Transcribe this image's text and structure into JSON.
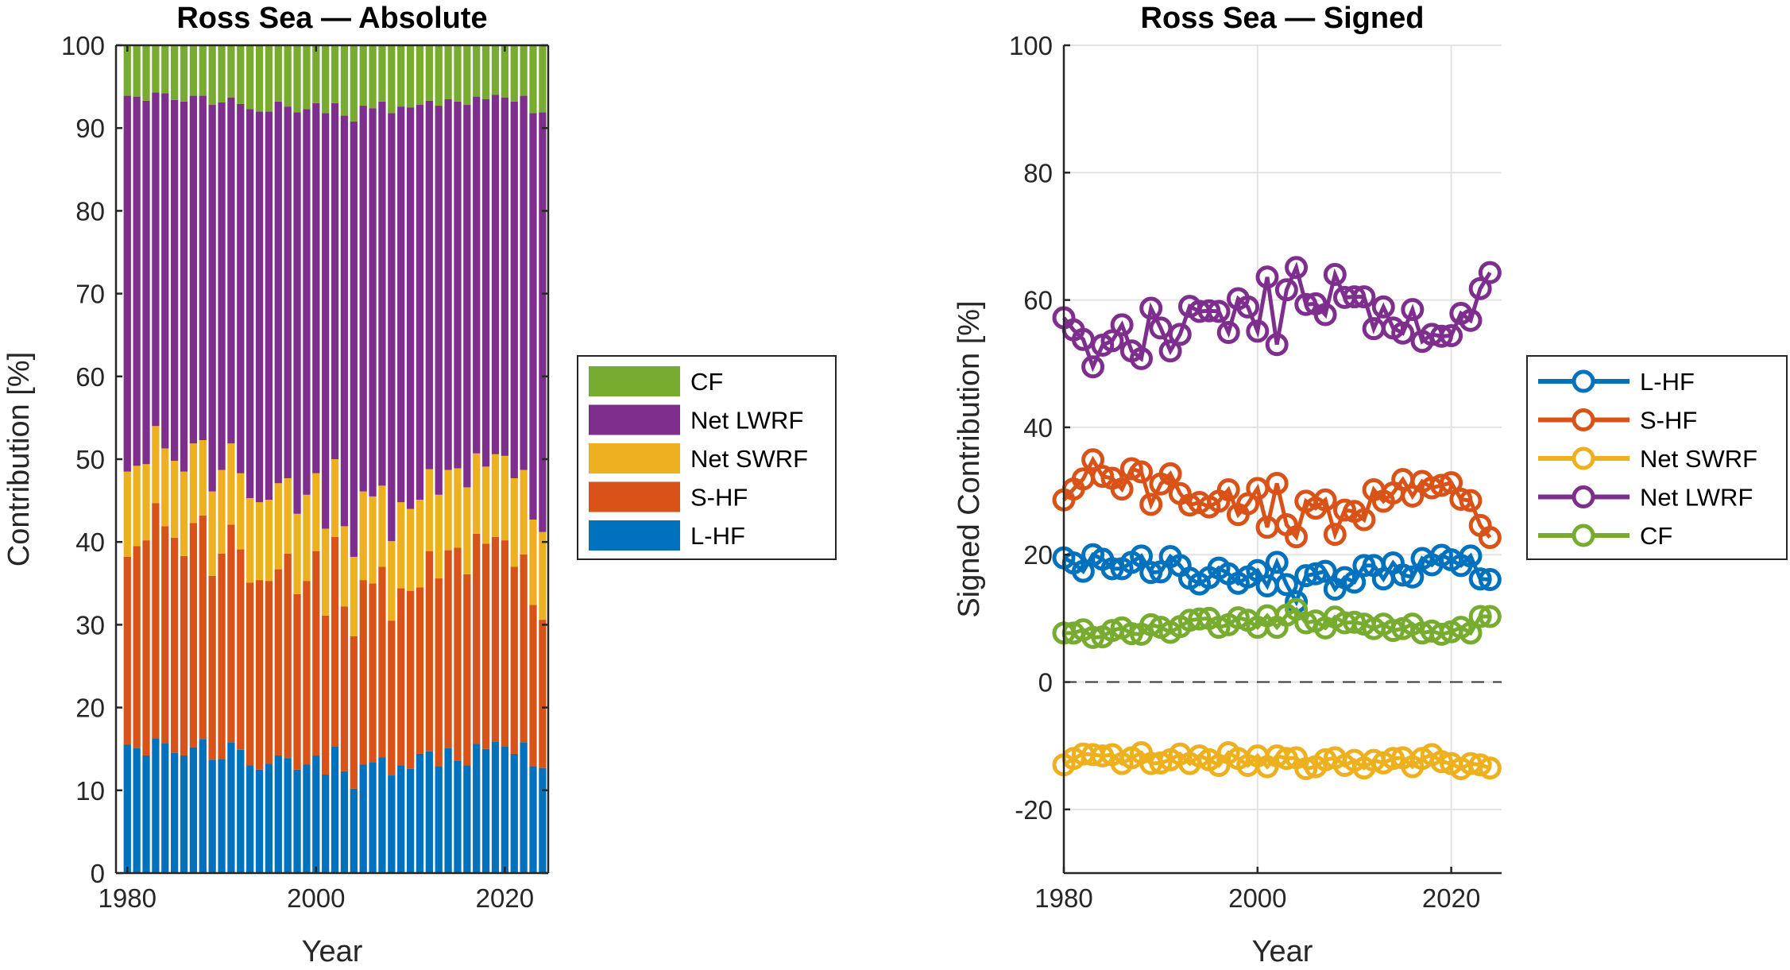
{
  "colors": {
    "L-HF": "#0072BD",
    "S-HF": "#D95319",
    "Net SWRF": "#EDB120",
    "Net LWRF": "#7E2F8E",
    "CF": "#77AC30"
  },
  "chart_data": [
    {
      "type": "bar",
      "stacked": true,
      "title": "Ross Sea — Absolute",
      "xlabel": "Year",
      "ylabel": "Contribution [%]",
      "xlim": [
        1978.8,
        2024.6
      ],
      "ylim": [
        0,
        100
      ],
      "xticks": [
        1980,
        2000,
        2020
      ],
      "yticks": [
        0,
        10,
        20,
        30,
        40,
        50,
        60,
        70,
        80,
        90,
        100
      ],
      "grid": false,
      "legend_placement": "outside-right",
      "legend_order": [
        "CF",
        "Net LWRF",
        "Net SWRF",
        "S-HF",
        "L-HF"
      ],
      "x": [
        1980,
        1981,
        1982,
        1983,
        1984,
        1985,
        1986,
        1987,
        1988,
        1989,
        1990,
        1991,
        1992,
        1993,
        1994,
        1995,
        1996,
        1997,
        1998,
        1999,
        2000,
        2001,
        2002,
        2003,
        2004,
        2005,
        2006,
        2007,
        2008,
        2009,
        2010,
        2011,
        2012,
        2013,
        2014,
        2015,
        2016,
        2017,
        2018,
        2019,
        2020,
        2021,
        2022,
        2023,
        2024
      ],
      "series": [
        {
          "name": "L-HF",
          "values": [
            15.5,
            15.1,
            14.2,
            16.3,
            15.7,
            14.5,
            14.2,
            15.2,
            16.2,
            13.7,
            13.8,
            15.8,
            14.9,
            13.0,
            12.5,
            13.2,
            14.2,
            13.9,
            12.5,
            13.1,
            14.2,
            11.9,
            15.3,
            12.3,
            10.2,
            13.1,
            13.4,
            14.0,
            11.8,
            13.0,
            12.6,
            14.4,
            14.7,
            12.9,
            15.1,
            13.6,
            13.0,
            15.6,
            15.0,
            15.9,
            15.3,
            14.4,
            15.8,
            12.9,
            12.7
          ]
        },
        {
          "name": "S-HF",
          "values": [
            22.7,
            24.4,
            26.0,
            28.4,
            26.2,
            26.0,
            24.1,
            27.1,
            27.0,
            22.2,
            24.8,
            26.3,
            24.2,
            22.1,
            22.9,
            22.1,
            22.5,
            24.7,
            21.2,
            22.2,
            24.7,
            19.2,
            25.3,
            19.9,
            18.4,
            22.3,
            21.6,
            23.0,
            18.7,
            21.4,
            21.5,
            20.1,
            24.2,
            22.7,
            23.9,
            25.7,
            23.1,
            25.4,
            24.8,
            24.7,
            24.9,
            22.6,
            22.7,
            19.5,
            17.9
          ]
        },
        {
          "name": "Net SWRF",
          "values": [
            10.3,
            9.7,
            9.2,
            9.3,
            9.4,
            9.3,
            10.2,
            9.6,
            9.1,
            10.2,
            10.1,
            9.8,
            9.2,
            10.2,
            9.4,
            9.8,
            10.4,
            9.1,
            9.7,
            10.4,
            9.4,
            10.5,
            9.4,
            9.7,
            9.6,
            10.7,
            10.5,
            9.8,
            9.6,
            10.4,
            9.9,
            10.6,
            9.9,
            10.1,
            9.7,
            9.6,
            10.5,
            9.7,
            9.3,
            10.0,
            10.2,
            10.7,
            10.2,
            10.3,
            10.6
          ]
        },
        {
          "name": "Net LWRF",
          "values": [
            45.4,
            44.6,
            43.9,
            40.3,
            42.9,
            43.6,
            44.7,
            42.0,
            41.6,
            46.7,
            44.4,
            41.8,
            44.6,
            47.0,
            47.2,
            46.9,
            46.1,
            44.9,
            48.5,
            46.6,
            44.7,
            50.2,
            43.0,
            49.6,
            52.6,
            46.6,
            46.9,
            46.4,
            51.7,
            47.8,
            48.5,
            47.7,
            44.5,
            47.0,
            44.8,
            44.3,
            46.2,
            43.1,
            44.4,
            43.4,
            43.3,
            45.5,
            45.2,
            49.1,
            50.7
          ]
        },
        {
          "name": "CF",
          "values": [
            6.1,
            6.2,
            6.7,
            5.7,
            5.8,
            6.6,
            6.8,
            6.1,
            6.1,
            7.2,
            6.9,
            6.3,
            7.1,
            7.7,
            8.0,
            8.0,
            6.8,
            7.4,
            8.1,
            7.7,
            7.0,
            8.2,
            7.0,
            8.5,
            9.2,
            7.3,
            7.6,
            6.8,
            8.2,
            7.4,
            7.5,
            7.2,
            6.7,
            7.3,
            6.5,
            6.8,
            7.2,
            6.2,
            6.5,
            6.0,
            6.3,
            6.8,
            6.1,
            8.2,
            8.1
          ]
        }
      ]
    },
    {
      "type": "line",
      "title": "Ross Sea — Signed",
      "xlabel": "Year",
      "ylabel": "Signed Contribution [%]",
      "xlim": [
        1980,
        2025.2
      ],
      "ylim": [
        -30,
        100
      ],
      "xticks": [
        1980,
        2000,
        2020
      ],
      "yticks": [
        -20,
        0,
        20,
        40,
        60,
        80,
        100
      ],
      "ytick_labels": [
        "-20",
        "0",
        "20",
        "40",
        "60",
        "80",
        "100"
      ],
      "grid": true,
      "reference_line": 0,
      "legend_placement": "outside-right",
      "x": [
        1980,
        1981,
        1982,
        1983,
        1984,
        1985,
        1986,
        1987,
        1988,
        1989,
        1990,
        1991,
        1992,
        1993,
        1994,
        1995,
        1996,
        1997,
        1998,
        1999,
        2000,
        2001,
        2002,
        2003,
        2004,
        2005,
        2006,
        2007,
        2008,
        2009,
        2010,
        2011,
        2012,
        2013,
        2014,
        2015,
        2016,
        2017,
        2018,
        2019,
        2020,
        2021,
        2022,
        2023,
        2024
      ],
      "series": [
        {
          "name": "L-HF",
          "values": [
            19.5,
            18.7,
            17.4,
            20.0,
            19.3,
            17.8,
            17.8,
            18.8,
            19.8,
            17.2,
            17.3,
            19.7,
            18.3,
            16.3,
            15.4,
            16.4,
            17.9,
            17.0,
            15.5,
            16.5,
            17.5,
            15.1,
            18.8,
            15.3,
            12.6,
            16.7,
            17.0,
            17.4,
            14.6,
            16.4,
            15.7,
            18.3,
            18.3,
            16.2,
            18.7,
            16.8,
            16.5,
            19.4,
            18.4,
            19.9,
            19.2,
            18.3,
            19.8,
            16.2,
            16.1
          ]
        },
        {
          "name": "S-HF",
          "values": [
            28.6,
            30.3,
            31.9,
            34.9,
            32.3,
            32.0,
            30.3,
            33.5,
            33.0,
            27.9,
            31.1,
            32.7,
            29.6,
            27.8,
            28.2,
            27.5,
            28.4,
            30.2,
            26.3,
            28.0,
            30.4,
            24.3,
            31.2,
            24.7,
            22.8,
            28.4,
            27.3,
            28.6,
            23.2,
            27.0,
            26.8,
            25.5,
            30.2,
            28.4,
            29.7,
            31.8,
            29.2,
            31.5,
            30.5,
            30.9,
            31.3,
            28.7,
            28.5,
            24.6,
            22.7
          ]
        },
        {
          "name": "Net SWRF",
          "values": [
            -13.0,
            -12.0,
            -11.3,
            -11.4,
            -11.6,
            -11.4,
            -12.8,
            -11.9,
            -11.1,
            -12.8,
            -12.7,
            -12.2,
            -11.3,
            -12.8,
            -11.6,
            -12.2,
            -13.1,
            -11.1,
            -12.0,
            -13.1,
            -11.6,
            -13.3,
            -11.6,
            -12.0,
            -11.9,
            -13.6,
            -13.3,
            -12.2,
            -11.9,
            -13.1,
            -12.3,
            -13.5,
            -12.3,
            -12.7,
            -12.0,
            -11.9,
            -13.3,
            -12.0,
            -11.4,
            -12.5,
            -12.8,
            -13.6,
            -12.8,
            -13.0,
            -13.5
          ]
        },
        {
          "name": "Net LWRF",
          "values": [
            57.2,
            55.3,
            53.8,
            49.5,
            52.9,
            53.6,
            56.1,
            52.0,
            50.8,
            58.7,
            55.6,
            52.0,
            54.6,
            59.0,
            58.2,
            58.3,
            58.2,
            54.9,
            60.2,
            58.9,
            55.1,
            63.6,
            53.0,
            61.6,
            65.1,
            59.3,
            59.4,
            57.7,
            64.0,
            60.4,
            60.5,
            60.5,
            55.5,
            58.9,
            55.6,
            54.8,
            58.5,
            53.5,
            54.6,
            54.3,
            54.4,
            57.9,
            56.8,
            61.8,
            64.3
          ]
        },
        {
          "name": "CF",
          "values": [
            7.7,
            7.7,
            8.2,
            7.0,
            7.1,
            8.1,
            8.5,
            7.6,
            7.5,
            9.0,
            8.6,
            7.8,
            8.7,
            9.7,
            9.9,
            10.0,
            8.6,
            9.0,
            10.1,
            9.7,
            8.6,
            10.4,
            8.6,
            10.5,
            11.4,
            9.3,
            9.6,
            8.5,
            10.2,
            9.3,
            9.4,
            9.1,
            8.4,
            9.1,
            8.1,
            8.4,
            9.1,
            7.7,
            8.0,
            7.5,
            7.9,
            8.6,
            7.7,
            10.3,
            10.3
          ]
        }
      ]
    }
  ]
}
